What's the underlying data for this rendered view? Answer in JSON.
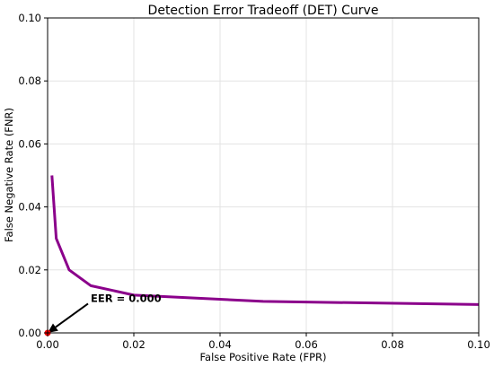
{
  "chart_data": {
    "type": "line",
    "title": "Detection Error Tradeoff (DET) Curve",
    "xlabel": "False Positive Rate (FPR)",
    "ylabel": "False Negative Rate (FNR)",
    "xlim": [
      0.0,
      0.1
    ],
    "ylim": [
      0.0,
      0.1
    ],
    "x_ticks": [
      0.0,
      0.02,
      0.04,
      0.06,
      0.08,
      0.1
    ],
    "y_ticks": [
      0.0,
      0.02,
      0.04,
      0.06,
      0.08,
      0.1
    ],
    "x_tick_labels": [
      "0.00",
      "0.02",
      "0.04",
      "0.06",
      "0.08",
      "0.10"
    ],
    "y_tick_labels": [
      "0.00",
      "0.02",
      "0.04",
      "0.06",
      "0.08",
      "0.10"
    ],
    "grid": true,
    "series": [
      {
        "color": "#8B008B",
        "x": [
          0.001,
          0.002,
          0.005,
          0.01,
          0.02,
          0.05,
          0.1
        ],
        "y": [
          0.05,
          0.03,
          0.02,
          0.015,
          0.012,
          0.01,
          0.009
        ]
      }
    ],
    "eer_point": {
      "x": 0.0,
      "y": 0.0,
      "color": "#ff0000"
    },
    "annotation": {
      "text": "EER = 0.000",
      "x": 0.0,
      "y": 0.0,
      "text_x": 0.01,
      "text_y": 0.011
    }
  }
}
